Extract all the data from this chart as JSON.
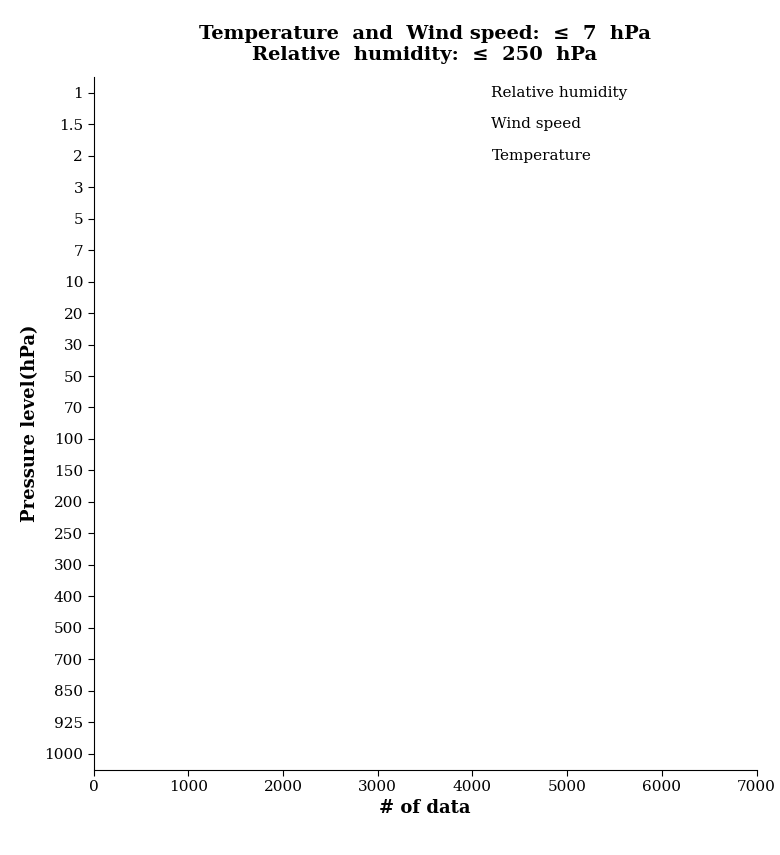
{
  "title_line1": "Temperature  and  Wind speed:  ≤  7  hPa",
  "title_line2": "Relative  humidity:  ≤  250  hPa",
  "ylabel": "Pressure level(hPa)",
  "xlabel": "# of data",
  "pressure_labels": [
    "1",
    "1.5",
    "2",
    "3",
    "5",
    "7",
    "10",
    "20",
    "30",
    "50",
    "70",
    "100",
    "150",
    "200",
    "250",
    "300",
    "400",
    "500",
    "700",
    "850",
    "925",
    "1000"
  ],
  "xlim": [
    0,
    7000
  ],
  "xticks": [
    0,
    1000,
    2000,
    3000,
    4000,
    5000,
    6000,
    7000
  ],
  "legend_labels": [
    "Relative humidity",
    "Wind speed",
    "Temperature"
  ],
  "title_fontsize": 14,
  "axis_label_fontsize": 13,
  "tick_fontsize": 11,
  "legend_fontsize": 11,
  "background_color": "#ffffff"
}
